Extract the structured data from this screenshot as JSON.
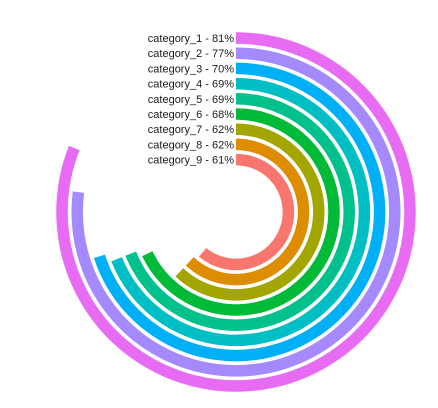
{
  "chart_data": {
    "type": "radial_bar",
    "max_value": 100,
    "series": [
      {
        "label": "category_1 - 81%",
        "value": 81,
        "color": "#E76BF3"
      },
      {
        "label": "category_2 - 77%",
        "value": 77,
        "color": "#A58AFF"
      },
      {
        "label": "category_3 - 70%",
        "value": 70,
        "color": "#00B0F6"
      },
      {
        "label": "category_4 - 69%",
        "value": 69,
        "color": "#00BFC4"
      },
      {
        "label": "category_5 - 69%",
        "value": 69,
        "color": "#00C08B"
      },
      {
        "label": "category_6 - 68%",
        "value": 68,
        "color": "#00BA38"
      },
      {
        "label": "category_7 - 62%",
        "value": 62,
        "color": "#A3A500"
      },
      {
        "label": "category_8 - 62%",
        "value": 62,
        "color": "#DE8C00"
      },
      {
        "label": "category_9 - 61%",
        "value": 61,
        "color": "#F8766D"
      }
    ]
  }
}
